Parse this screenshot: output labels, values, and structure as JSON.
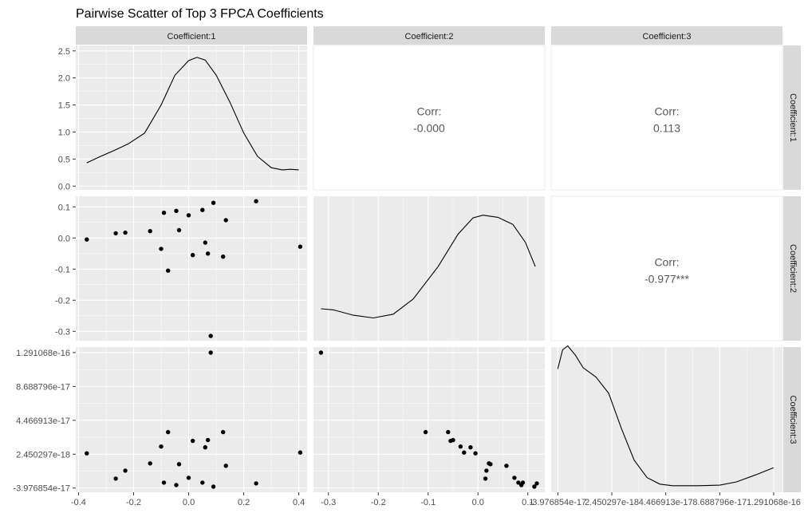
{
  "chart_data": {
    "type": "scatter-matrix",
    "title": "Pairwise Scatter of Top 3 FPCA Coefficients",
    "variables": [
      "Coefficient:1",
      "Coefficient:2",
      "Coefficient:3"
    ],
    "corr_label": "Corr:",
    "correlations": [
      {
        "row": 0,
        "col": 1,
        "value": "-0.000"
      },
      {
        "row": 0,
        "col": 2,
        "value": "0.113"
      },
      {
        "row": 1,
        "col": 2,
        "value": "-0.977***"
      }
    ],
    "axes": {
      "c1": {
        "range": [
          -0.41,
          0.43
        ],
        "ticks": [
          {
            "v": -0.4,
            "label": "-0.4"
          },
          {
            "v": -0.2,
            "label": "-0.2"
          },
          {
            "v": 0.0,
            "label": "0.0"
          },
          {
            "v": 0.2,
            "label": "0.2"
          },
          {
            "v": 0.4,
            "label": "0.4"
          }
        ]
      },
      "c2": {
        "range": [
          -0.33,
          0.134
        ],
        "ticks": [
          {
            "v": -0.3,
            "label": "-0.3"
          },
          {
            "v": -0.2,
            "label": "-0.2"
          },
          {
            "v": -0.1,
            "label": "-0.1"
          },
          {
            "v": 0.0,
            "label": "0.0"
          },
          {
            "v": 0.1,
            "label": "0.1"
          }
        ]
      },
      "c3": {
        "range": [
          -4.5,
          13.6
        ],
        "ticks": [
          {
            "v": -3.976854,
            "label": "-3.976854e-17"
          },
          {
            "v": 0.2450297,
            "label": "2.450297e-18"
          },
          {
            "v": 4.466913,
            "label": "4.466913e-17"
          },
          {
            "v": 8.688796,
            "label": "8.688796e-17"
          },
          {
            "v": 12.91068,
            "label": "1.291068e-16"
          }
        ]
      },
      "density": {
        "range": [
          -0.07,
          2.6
        ],
        "ticks": [
          {
            "v": 0.0,
            "label": "0.0"
          },
          {
            "v": 0.5,
            "label": "0.5"
          },
          {
            "v": 1.0,
            "label": "1.0"
          },
          {
            "v": 1.5,
            "label": "1.5"
          },
          {
            "v": 2.0,
            "label": "2.0"
          },
          {
            "v": 2.5,
            "label": "2.5"
          }
        ]
      }
    },
    "points": [
      {
        "c1": -0.37,
        "c2": -0.005,
        "c3": 0.35
      },
      {
        "c1": -0.265,
        "c2": 0.015,
        "c3": -2.8
      },
      {
        "c1": -0.23,
        "c2": 0.017,
        "c3": -1.8
      },
      {
        "c1": -0.14,
        "c2": 0.022,
        "c3": -0.9
      },
      {
        "c1": -0.1,
        "c2": -0.035,
        "c3": 1.2
      },
      {
        "c1": -0.09,
        "c2": 0.081,
        "c3": -3.3
      },
      {
        "c1": -0.075,
        "c2": -0.105,
        "c3": 3.0
      },
      {
        "c1": -0.045,
        "c2": 0.087,
        "c3": -3.6
      },
      {
        "c1": -0.035,
        "c2": 0.025,
        "c3": -1.0
      },
      {
        "c1": 0.0,
        "c2": 0.073,
        "c3": -2.7
      },
      {
        "c1": 0.015,
        "c2": -0.055,
        "c3": 1.9
      },
      {
        "c1": 0.05,
        "c2": 0.09,
        "c3": -3.3
      },
      {
        "c1": 0.06,
        "c2": -0.015,
        "c3": 1.1
      },
      {
        "c1": 0.07,
        "c2": -0.05,
        "c3": 2.0
      },
      {
        "c1": 0.08,
        "c2": -0.315,
        "c3": 12.9
      },
      {
        "c1": 0.09,
        "c2": 0.113,
        "c3": -3.8
      },
      {
        "c1": 0.125,
        "c2": -0.06,
        "c3": 3.0
      },
      {
        "c1": 0.135,
        "c2": 0.057,
        "c3": -1.2
      },
      {
        "c1": 0.245,
        "c2": 0.118,
        "c3": -3.4
      },
      {
        "c1": 0.405,
        "c2": -0.028,
        "c3": 0.45
      }
    ],
    "density_curves": [
      {
        "var": "c1",
        "points": [
          [
            -0.37,
            0.43
          ],
          [
            -0.32,
            0.55
          ],
          [
            -0.27,
            0.66
          ],
          [
            -0.22,
            0.78
          ],
          [
            -0.16,
            0.98
          ],
          [
            -0.1,
            1.5
          ],
          [
            -0.05,
            2.05
          ],
          [
            0.0,
            2.32
          ],
          [
            0.03,
            2.38
          ],
          [
            0.06,
            2.33
          ],
          [
            0.1,
            2.05
          ],
          [
            0.15,
            1.55
          ],
          [
            0.2,
            0.98
          ],
          [
            0.25,
            0.55
          ],
          [
            0.3,
            0.34
          ],
          [
            0.34,
            0.3
          ],
          [
            0.37,
            0.31
          ],
          [
            0.4,
            0.3
          ]
        ]
      },
      {
        "var": "c2",
        "points": [
          [
            -0.315,
            0.52
          ],
          [
            -0.29,
            0.5
          ],
          [
            -0.25,
            0.4
          ],
          [
            -0.21,
            0.35
          ],
          [
            -0.17,
            0.42
          ],
          [
            -0.13,
            0.7
          ],
          [
            -0.08,
            1.3
          ],
          [
            -0.04,
            1.9
          ],
          [
            -0.01,
            2.2
          ],
          [
            0.01,
            2.25
          ],
          [
            0.04,
            2.21
          ],
          [
            0.07,
            2.08
          ],
          [
            0.095,
            1.75
          ],
          [
            0.115,
            1.3
          ]
        ]
      },
      {
        "var": "c3",
        "points": [
          [
            -3.98,
            2.2
          ],
          [
            -3.6,
            2.55
          ],
          [
            -3.2,
            2.62
          ],
          [
            -2.6,
            2.45
          ],
          [
            -2.0,
            2.22
          ],
          [
            -1.0,
            2.05
          ],
          [
            0.0,
            1.75
          ],
          [
            1.0,
            1.1
          ],
          [
            2.0,
            0.52
          ],
          [
            3.0,
            0.2
          ],
          [
            4.0,
            0.08
          ],
          [
            5.0,
            0.05
          ],
          [
            7.0,
            0.05
          ],
          [
            8.7,
            0.06
          ],
          [
            10.0,
            0.12
          ],
          [
            11.5,
            0.25
          ],
          [
            12.9,
            0.38
          ]
        ]
      }
    ]
  }
}
